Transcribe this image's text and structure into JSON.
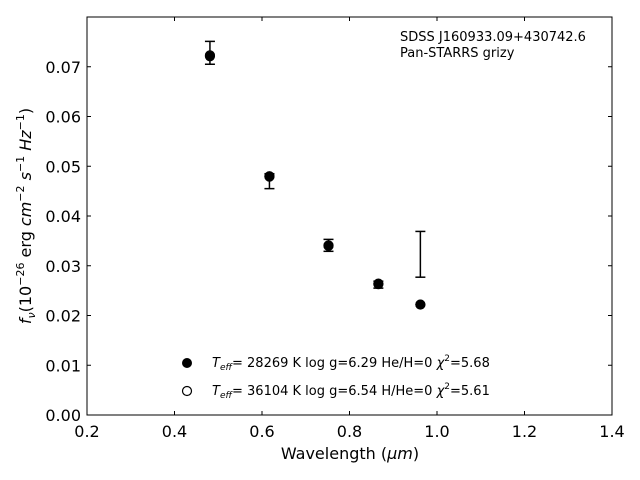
{
  "chart_data": {
    "type": "scatter",
    "xlabel": "Wavelength (",
    "xlabel_unit": "μm",
    "ylabel": {
      "f": "f",
      "f_sub": "ν",
      "paren_open": "(10",
      "exp1": "−26",
      "erg": " erg ",
      "cm": "cm",
      "exp2": "−2",
      "s": " s",
      "exp3": "−1",
      "hz": " Hz",
      "exp4": "−1",
      "paren_close": ")"
    },
    "xlim": [
      0.2,
      1.4
    ],
    "ylim": [
      0.0,
      0.08
    ],
    "xticks": [
      "0.2",
      "0.4",
      "0.6",
      "0.8",
      "1.0",
      "1.2",
      "1.4"
    ],
    "yticks": [
      "0.00",
      "0.01",
      "0.02",
      "0.03",
      "0.04",
      "0.05",
      "0.06",
      "0.07"
    ],
    "xtick_values": [
      0.2,
      0.4,
      0.6,
      0.8,
      1.0,
      1.2,
      1.4
    ],
    "ytick_values": [
      0.0,
      0.01,
      0.02,
      0.03,
      0.04,
      0.05,
      0.06,
      0.07
    ],
    "annotation": [
      "SDSS J160933.09+430742.6",
      "Pan-STARRS grizy"
    ],
    "observed": {
      "x": [
        0.481,
        0.617,
        0.752,
        0.866,
        0.962
      ],
      "y": [
        0.0728,
        0.047,
        0.0341,
        0.0262,
        0.0323
      ],
      "yerr": [
        0.0023,
        0.0015,
        0.0012,
        0.0007,
        0.0046
      ]
    },
    "series": [
      {
        "name": "Teff= 28269 K  log g=6.29  He/H=0  χ²=5.68",
        "marker": "filled-circle",
        "x": [
          0.481,
          0.617,
          0.752,
          0.866,
          0.962
        ],
        "y": [
          0.0721,
          0.0479,
          0.0341,
          0.0264,
          0.0222
        ]
      },
      {
        "name": "Teff= 36104 K  log g=6.54  H/He=0  χ²=5.61",
        "marker": "open-circle",
        "x": [
          0.481,
          0.617,
          0.752,
          0.866,
          0.962
        ],
        "y": [
          0.0723,
          0.048,
          0.034,
          0.0263,
          0.0222
        ]
      }
    ],
    "legend": [
      {
        "T": "T",
        "eff": "eff",
        "rest": "= 28269 K  log g=6.29  He/H=0  ",
        "chi": "χ",
        "chi_exp": "2",
        "chi_val": "=5.68"
      },
      {
        "T": "T",
        "eff": "eff",
        "rest": "= 36104 K  log g=6.54  H/He=0  ",
        "chi": "χ",
        "chi_exp": "2",
        "chi_val": "=5.61"
      }
    ],
    "legend_position": "lower-center",
    "grid": false
  }
}
